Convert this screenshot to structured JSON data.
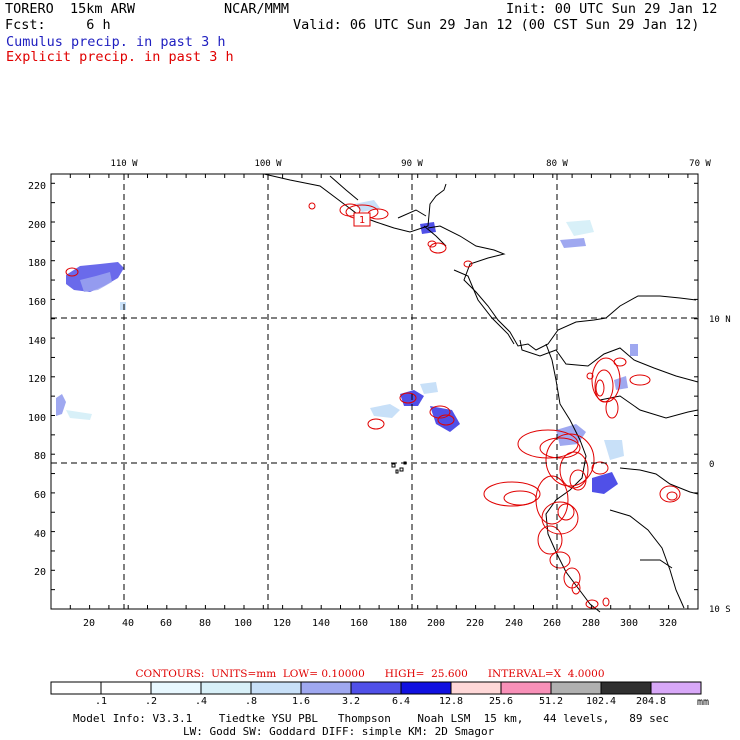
{
  "header": {
    "model_name": "TORERO  15km ARW",
    "center": "NCAR/MMM",
    "init": "Init: 00 UTC Sun 29 Jan 12",
    "forecast": "Fcst:     6 h",
    "valid": "Valid: 06 UTC Sun 29 Jan 12 (00 CST Sun 29 Jan 12)",
    "line_blue": "Cumulus precip. in past 3 h",
    "line_red": "Explicit precip. in past 3 h"
  },
  "map": {
    "x_ticks": [
      "20",
      "40",
      "60",
      "80",
      "100",
      "120",
      "140",
      "160",
      "180",
      "200",
      "220",
      "240",
      "260",
      "280",
      "300",
      "320"
    ],
    "y_ticks": [
      "20",
      "40",
      "60",
      "80",
      "100",
      "120",
      "140",
      "160",
      "180",
      "200",
      "220"
    ],
    "lon_labels": [
      "110 W",
      "100 W",
      "90 W",
      "80 W",
      "70 W"
    ],
    "lat_labels": [
      "10 N",
      "0",
      "10 S"
    ],
    "max_marker": "1",
    "colors": {
      "coast": "#000000",
      "grid": "#000000",
      "explicit_contour": "#e00000",
      "cumulus_shade": "#4040e0"
    }
  },
  "contours_info": {
    "text": "CONTOURS:  UNITS=mm  LOW= 0.10000      HIGH=  25.600      INTERVAL=X  4.0000"
  },
  "colorbar": {
    "labels": [
      ".1",
      ".2",
      ".4",
      ".8",
      "1.6",
      "3.2",
      "6.4",
      "12.8",
      "25.6",
      "51.2",
      "102.4",
      "204.8"
    ],
    "units": "mm",
    "colors": [
      "#ffffff",
      "#ffffff",
      "#e8f8ff",
      "#d8f0f8",
      "#c8e0f8",
      "#9fa8f0",
      "#5050e8",
      "#1010e0",
      "#ffd8d8",
      "#f890b8",
      "#b0b0b0",
      "#303030",
      "#d8a8f8"
    ]
  },
  "model_info": {
    "line1": "Model Info: V3.3.1    Tiedtke YSU PBL   Thompson    Noah LSM  15 km,   44 levels,   89 sec",
    "line2": "LW: Godd SW: Goddard DIFF: simple KM: 2D Smagor"
  }
}
